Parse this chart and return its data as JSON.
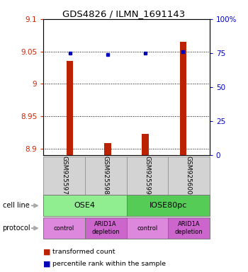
{
  "title": "GDS4826 / ILMN_1691143",
  "samples": [
    "GSM925597",
    "GSM925598",
    "GSM925599",
    "GSM925600"
  ],
  "red_values": [
    9.035,
    8.908,
    8.923,
    9.065
  ],
  "blue_values": [
    75.0,
    74.0,
    75.0,
    76.0
  ],
  "ylim_left": [
    8.89,
    9.1
  ],
  "ylim_right": [
    0,
    100
  ],
  "yticks_left": [
    8.9,
    8.95,
    9.0,
    9.05,
    9.1
  ],
  "ytick_labels_left": [
    "8.9",
    "8.95",
    "9",
    "9.05",
    "9.1"
  ],
  "yticks_right": [
    0,
    25,
    50,
    75,
    100
  ],
  "ytick_labels_right": [
    "0",
    "25",
    "50",
    "75",
    "100%"
  ],
  "cell_line_data": [
    {
      "label": "OSE4",
      "span": [
        0,
        2
      ],
      "color": "#90ee90"
    },
    {
      "label": "IOSE80pc",
      "span": [
        2,
        4
      ],
      "color": "#55cc55"
    }
  ],
  "protocol_data": [
    {
      "label": "control",
      "color": "#dd88dd"
    },
    {
      "label": "ARID1A\ndepletion",
      "color": "#cc66cc"
    },
    {
      "label": "control",
      "color": "#dd88dd"
    },
    {
      "label": "ARID1A\ndepletion",
      "color": "#cc66cc"
    }
  ],
  "legend_red": "transformed count",
  "legend_blue": "percentile rank within the sample",
  "bar_color": "#bb2200",
  "dot_color": "#0000bb",
  "sample_box_color": "#d3d3d3",
  "sample_box_edge": "#999999",
  "arrow_color": "#aaaaaa"
}
